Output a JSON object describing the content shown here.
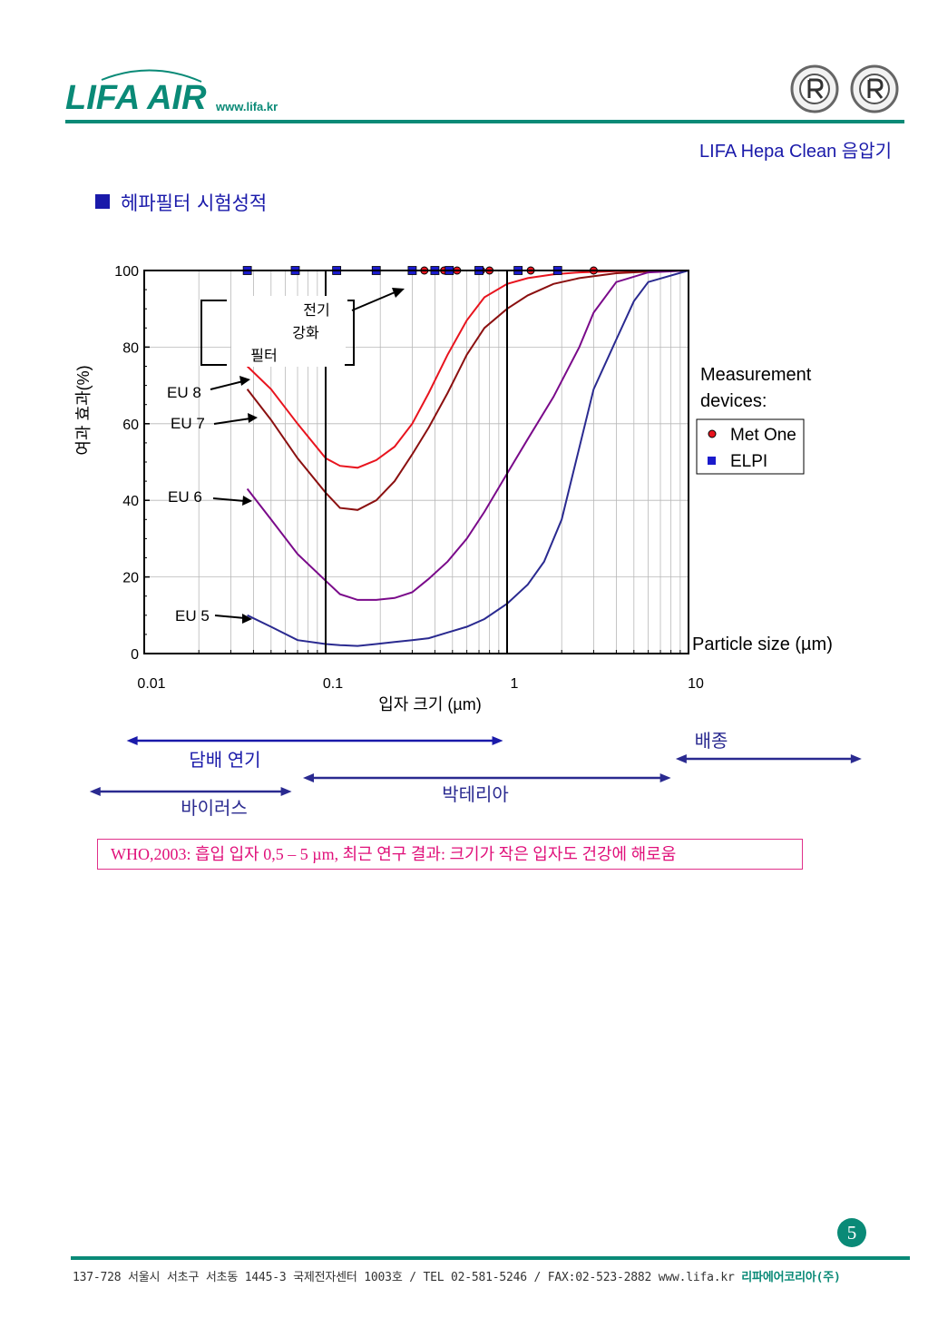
{
  "header": {
    "logo_text": "LIFA AIR",
    "logo_url": "www.lifa.kr",
    "doc_title": "LIFA Hepa Clean 음압기"
  },
  "section": {
    "title": "헤파필터 시험성적"
  },
  "chart_data": {
    "type": "line",
    "xscale": "log",
    "xlim": [
      0.01,
      10
    ],
    "ylim": [
      0,
      100
    ],
    "x_ticks": [
      "0.01",
      "0.1",
      "1",
      "10"
    ],
    "y_ticks": [
      "0",
      "20",
      "40",
      "60",
      "80",
      "100"
    ],
    "xlabel": "입자 크기 (µm)",
    "ylabel": "여과 효과(%)",
    "x_side_label": "Particle size (µm)",
    "grid": true,
    "series": [
      {
        "name": "EU 8",
        "color": "#e8141e",
        "x": [
          0.037,
          0.05,
          0.07,
          0.1,
          0.12,
          0.15,
          0.19,
          0.24,
          0.3,
          0.37,
          0.47,
          0.6,
          0.75,
          1.0,
          1.3,
          1.8,
          2.5,
          4.0,
          6.0,
          10.0
        ],
        "y": [
          75,
          69,
          60,
          51,
          49,
          48.5,
          50.5,
          54,
          60,
          68,
          78,
          87,
          93,
          96.5,
          98,
          99,
          99.5,
          99.8,
          99.9,
          100
        ]
      },
      {
        "name": "EU 7",
        "color": "#8b1010",
        "x": [
          0.037,
          0.05,
          0.07,
          0.1,
          0.12,
          0.15,
          0.19,
          0.24,
          0.3,
          0.37,
          0.47,
          0.6,
          0.75,
          1.0,
          1.3,
          1.8,
          2.5,
          4.0,
          6.0,
          10.0
        ],
        "y": [
          69,
          61,
          51,
          42,
          38,
          37.5,
          40,
          45,
          52,
          59,
          68,
          78,
          85,
          90,
          93.5,
          96.5,
          98,
          99.3,
          99.7,
          100
        ]
      },
      {
        "name": "EU 6",
        "color": "#7a0a8a",
        "x": [
          0.037,
          0.05,
          0.07,
          0.1,
          0.12,
          0.15,
          0.19,
          0.24,
          0.3,
          0.37,
          0.47,
          0.6,
          0.75,
          1.0,
          1.3,
          1.8,
          2.5,
          3.0,
          4.0,
          6.0,
          10.0
        ],
        "y": [
          43,
          35,
          26,
          19,
          15.5,
          14,
          14,
          14.5,
          16,
          19.5,
          24,
          30,
          37,
          47,
          56,
          67,
          80,
          89,
          97,
          99.5,
          100
        ]
      },
      {
        "name": "EU 5",
        "color": "#2a2a90",
        "x": [
          0.037,
          0.05,
          0.07,
          0.1,
          0.12,
          0.15,
          0.19,
          0.24,
          0.3,
          0.37,
          0.47,
          0.6,
          0.75,
          1.0,
          1.3,
          1.6,
          2.0,
          3.0,
          4.0,
          5.0,
          6.0,
          10.0
        ],
        "y": [
          10,
          7,
          3.5,
          2.5,
          2.2,
          2,
          2.5,
          3,
          3.5,
          4,
          5.5,
          7,
          9,
          13,
          18,
          24,
          35,
          69,
          82,
          92,
          97,
          100
        ]
      },
      {
        "name": "전기 강화 필터",
        "color": "#1aa878",
        "x": [
          0.037,
          10.0
        ],
        "y": [
          100,
          100
        ]
      }
    ],
    "markers": [
      {
        "name": "Met One",
        "shape": "circle",
        "color": "#e8141e",
        "x": [
          0.35,
          0.45,
          0.53,
          0.72,
          0.8,
          1.35,
          3.0
        ],
        "y": [
          100,
          100,
          100,
          100,
          100,
          100,
          100
        ]
      },
      {
        "name": "ELPI",
        "shape": "square",
        "color": "#1a1acc",
        "x": [
          0.037,
          0.068,
          0.115,
          0.19,
          0.3,
          0.4,
          0.48,
          0.7,
          1.15,
          1.9
        ],
        "y": [
          100,
          100,
          100,
          100,
          100,
          100,
          100,
          100,
          100,
          100
        ]
      }
    ],
    "legend": {
      "title": "Measurement devices:",
      "entries": [
        "Met One",
        "ELPI"
      ],
      "placement": "right"
    },
    "annotations": {
      "filter_box": [
        "전기",
        "강화",
        "필터"
      ],
      "curve_labels": [
        "EU 8",
        "EU 7",
        "EU 6",
        "EU 5"
      ]
    },
    "ranges": [
      {
        "label": "담배 연기",
        "color": "#1a1aaa",
        "from": "0.008",
        "to": "0.95"
      },
      {
        "label": "바이러스",
        "color": "#2a2a90",
        "from": "0.005",
        "to": "0.065"
      },
      {
        "label": "박테리아",
        "color": "#2a2a90",
        "from": "0.075",
        "to": "8"
      },
      {
        "label": "배종",
        "color": "#2a2a90",
        "from": "8.5",
        "to": "90"
      }
    ]
  },
  "note": {
    "text": "WHO,2003: 흡입 입자 0,5 – 5 µm, 최근 연구 결과: 크기가 작은 입자도 건강에 해로움"
  },
  "page": {
    "number": "5"
  },
  "footer": {
    "address": "137-728 서울시 서초구 서초동 1445-3 국제전자센터 1003호 / TEL 02-581-5246  /  FAX:02-523-2882   www.lifa.kr",
    "brand": "리파에어코리아(주)"
  },
  "colors": {
    "accent": "#0a8a77",
    "title_blue": "#1a1aaa",
    "note_pink": "#e0107a"
  }
}
